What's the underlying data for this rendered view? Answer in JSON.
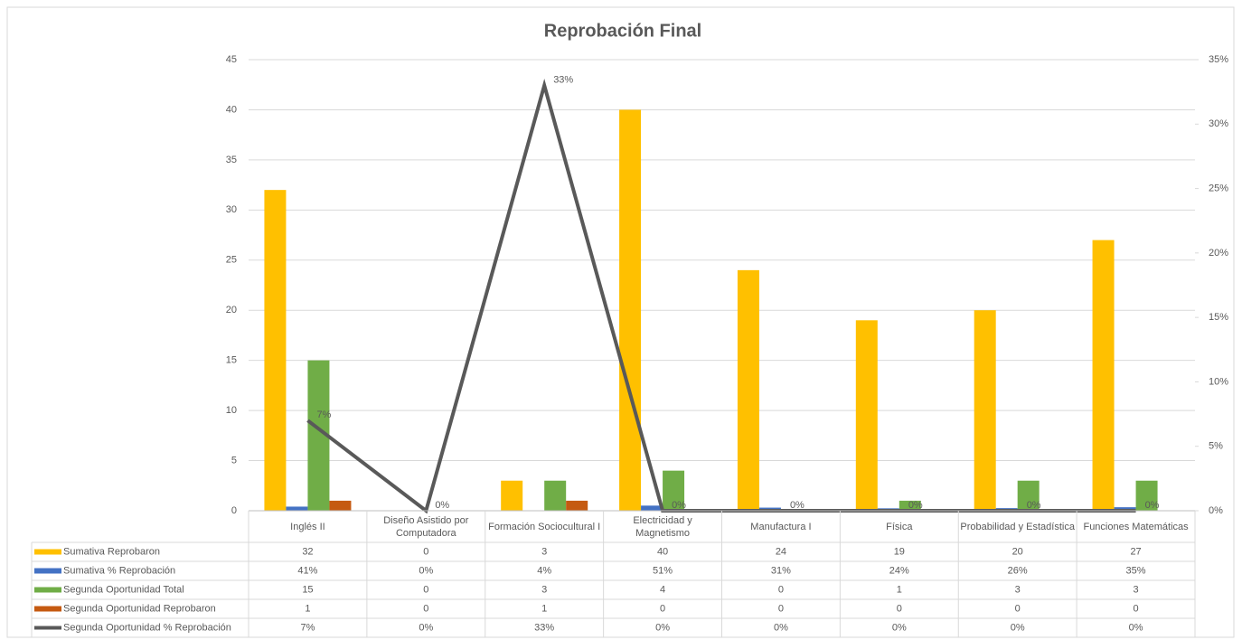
{
  "chart_data": {
    "type": "bar",
    "title": "Reprobación Final",
    "categories": [
      "Inglés II",
      "Diseño Asistido por Computadora",
      "Formación Sociocultural I",
      "Electricidad y Magnetismo",
      "Manufactura I",
      "Física",
      "Probabilidad y Estadística",
      "Funciones Matemáticas"
    ],
    "series": [
      {
        "name": "Sumativa Reprobaron",
        "color": "#ffc000",
        "type": "bar",
        "values": [
          32,
          0,
          3,
          40,
          24,
          19,
          20,
          27
        ]
      },
      {
        "name": "Sumativa % Reprobación",
        "color": "#4472c4",
        "type": "bar",
        "values": [
          0.41,
          0,
          0.04,
          0.51,
          0.31,
          0.24,
          0.26,
          0.35
        ],
        "value_labels": [
          "41%",
          "0%",
          "4%",
          "51%",
          "31%",
          "24%",
          "26%",
          "35%"
        ]
      },
      {
        "name": "Segunda Oportunidad Total",
        "color": "#70ad47",
        "type": "bar",
        "values": [
          15,
          0,
          3,
          4,
          0,
          1,
          3,
          3
        ]
      },
      {
        "name": "Segunda Oportunidad Reprobaron",
        "color": "#c55a11",
        "type": "bar",
        "values": [
          1,
          0,
          1,
          0,
          0,
          0,
          0,
          0
        ]
      },
      {
        "name": "Segunda Oportunidad % Reprobación",
        "color": "#595959",
        "type": "line",
        "axis": "y2",
        "values": [
          7,
          0,
          33,
          0,
          0,
          0,
          0,
          0
        ],
        "value_labels": [
          "7%",
          "0%",
          "33%",
          "0%",
          "0%",
          "0%",
          "0%",
          "0%"
        ]
      }
    ],
    "ylim": [
      0,
      45
    ],
    "yticks": [
      0,
      5,
      10,
      15,
      20,
      25,
      30,
      35,
      40,
      45
    ],
    "y2lim": [
      0,
      35
    ],
    "y2ticks": [
      {
        "value": 0,
        "label": "0%"
      },
      {
        "value": 5,
        "label": "5%"
      },
      {
        "value": 10,
        "label": "10%"
      },
      {
        "value": 15,
        "label": "15%"
      },
      {
        "value": 20,
        "label": "20%"
      },
      {
        "value": 25,
        "label": "25%"
      },
      {
        "value": 30,
        "label": "30%"
      },
      {
        "value": 35,
        "label": "35%"
      }
    ],
    "grid": true,
    "data_table": true
  }
}
